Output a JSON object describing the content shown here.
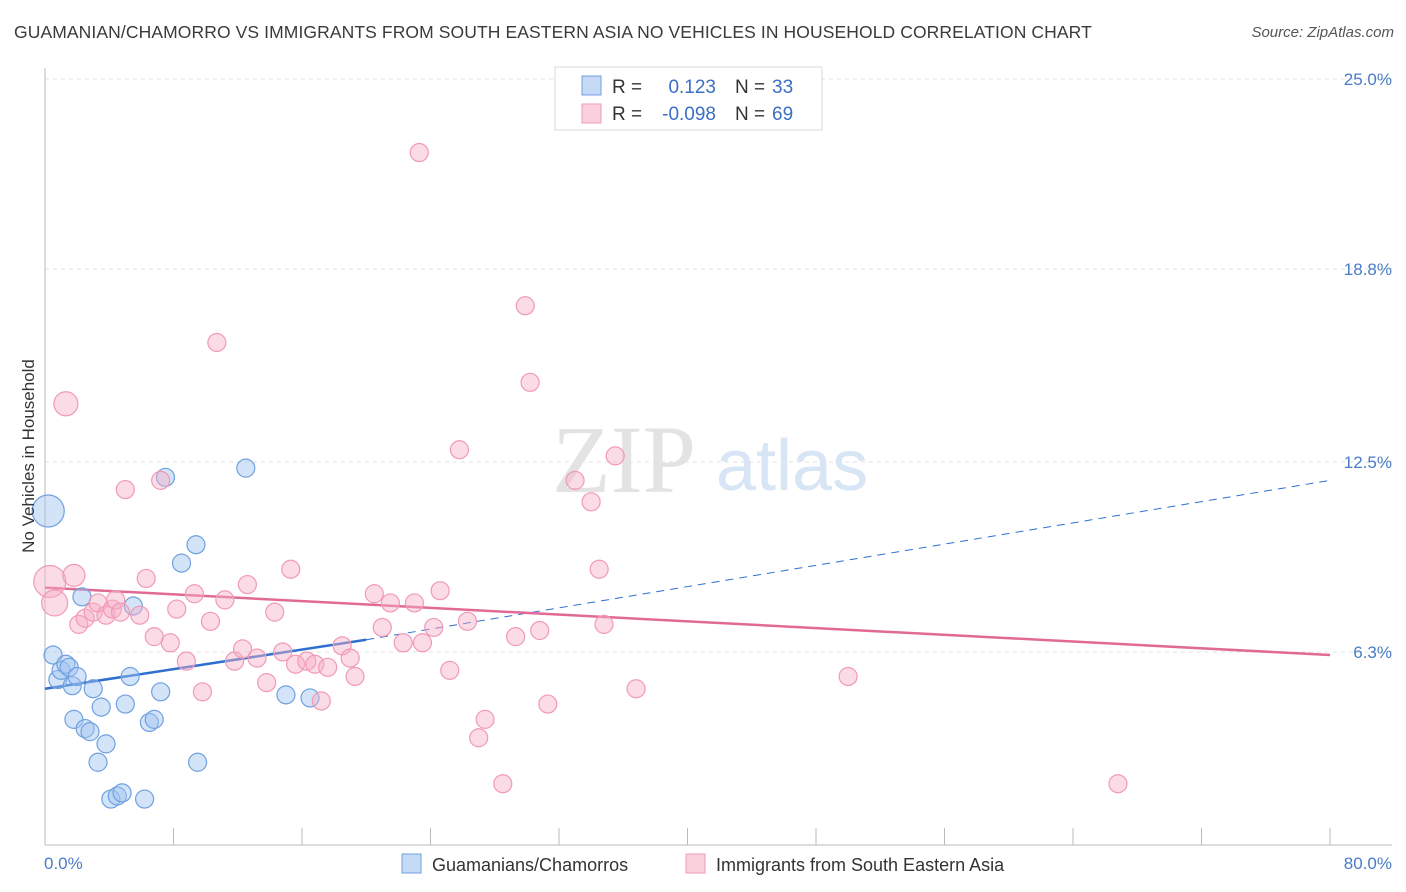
{
  "header": {
    "title": "GUAMANIAN/CHAMORRO VS IMMIGRANTS FROM SOUTH EASTERN ASIA NO VEHICLES IN HOUSEHOLD CORRELATION CHART",
    "source": "Source: ZipAtlas.com"
  },
  "watermark": {
    "zip": "ZIP",
    "atlas": "atlas"
  },
  "legend": {
    "r_label": "R =",
    "n_label": "N =",
    "rows": [
      {
        "r": "0.123",
        "n": "33"
      },
      {
        "r": "-0.098",
        "n": "69"
      }
    ]
  },
  "chart_data": {
    "type": "scatter",
    "title": "GUAMANIAN/CHAMORRO VS IMMIGRANTS FROM SOUTH EASTERN ASIA NO VEHICLES IN HOUSEHOLD CORRELATION CHART",
    "xlabel": "",
    "ylabel": "No Vehicles in Household",
    "xlim": [
      0,
      80
    ],
    "ylim": [
      0,
      25
    ],
    "x_tick_labels": [
      "0.0%",
      "80.0%"
    ],
    "y_ticks": [
      6.3,
      12.5,
      18.8,
      25.0
    ],
    "y_tick_labels": [
      "6.3%",
      "12.5%",
      "18.8%",
      "25.0%"
    ],
    "grid": true,
    "legend_position": "top-center",
    "colors": {
      "blue": "#6fa0e0",
      "pink": "#f19ab5",
      "blue_line": "#2f6fd0",
      "pink_line": "#e06a93"
    },
    "series": [
      {
        "name": "Guamanians/Chamorros",
        "color": "blue",
        "r": 0.123,
        "n": 33,
        "trend": {
          "x0": 0,
          "y0": 5.1,
          "x1": 20,
          "y1": 6.7,
          "dash_to_x": 80,
          "dash_to_y": 11.9
        },
        "points": [
          [
            0.2,
            10.9,
            16
          ],
          [
            0.5,
            6.2,
            9
          ],
          [
            0.8,
            5.4,
            9
          ],
          [
            1.0,
            5.7,
            9
          ],
          [
            1.3,
            5.9,
            9
          ],
          [
            1.5,
            5.8,
            9
          ],
          [
            1.7,
            5.2,
            9
          ],
          [
            2.0,
            5.5,
            9
          ],
          [
            1.8,
            4.1,
            9
          ],
          [
            2.5,
            3.8,
            9
          ],
          [
            2.8,
            3.7,
            9
          ],
          [
            3.0,
            5.1,
            9
          ],
          [
            3.3,
            2.7,
            9
          ],
          [
            3.5,
            4.5,
            9
          ],
          [
            3.8,
            3.3,
            9
          ],
          [
            4.1,
            1.5,
            9
          ],
          [
            4.5,
            1.6,
            9
          ],
          [
            4.8,
            1.7,
            9
          ],
          [
            5.0,
            4.6,
            9
          ],
          [
            5.3,
            5.5,
            9
          ],
          [
            6.2,
            1.5,
            9
          ],
          [
            6.5,
            4.0,
            9
          ],
          [
            6.8,
            4.1,
            9
          ],
          [
            7.2,
            5.0,
            9
          ],
          [
            7.5,
            12.0,
            9
          ],
          [
            8.5,
            9.2,
            9
          ],
          [
            9.4,
            9.8,
            9
          ],
          [
            9.5,
            2.7,
            9
          ],
          [
            12.5,
            12.3,
            9
          ],
          [
            15.0,
            4.9,
            9
          ],
          [
            16.5,
            4.8,
            9
          ],
          [
            2.3,
            8.1,
            9
          ],
          [
            5.5,
            7.8,
            9
          ]
        ]
      },
      {
        "name": "Immigrants from South Eastern Asia",
        "color": "pink",
        "r": -0.098,
        "n": 69,
        "trend": {
          "x0": 0,
          "y0": 8.4,
          "x1": 80,
          "y1": 6.2
        },
        "points": [
          [
            0.3,
            8.6,
            16
          ],
          [
            0.6,
            7.9,
            13
          ],
          [
            1.3,
            14.4,
            12
          ],
          [
            1.8,
            8.8,
            11
          ],
          [
            2.1,
            7.2,
            9
          ],
          [
            2.5,
            7.4,
            9
          ],
          [
            3.0,
            7.6,
            9
          ],
          [
            3.3,
            7.9,
            9
          ],
          [
            3.8,
            7.5,
            9
          ],
          [
            4.2,
            7.7,
            9
          ],
          [
            4.4,
            8.0,
            9
          ],
          [
            4.7,
            7.6,
            9
          ],
          [
            5.0,
            11.6,
            9
          ],
          [
            5.9,
            7.5,
            9
          ],
          [
            6.3,
            8.7,
            9
          ],
          [
            6.8,
            6.8,
            9
          ],
          [
            7.2,
            11.9,
            9
          ],
          [
            7.8,
            6.6,
            9
          ],
          [
            8.2,
            7.7,
            9
          ],
          [
            8.8,
            6.0,
            9
          ],
          [
            9.3,
            8.2,
            9
          ],
          [
            9.8,
            5.0,
            9
          ],
          [
            10.3,
            7.3,
            9
          ],
          [
            10.7,
            16.4,
            9
          ],
          [
            11.2,
            8.0,
            9
          ],
          [
            11.8,
            6.0,
            9
          ],
          [
            12.3,
            6.4,
            9
          ],
          [
            12.6,
            8.5,
            9
          ],
          [
            13.2,
            6.1,
            9
          ],
          [
            13.8,
            5.3,
            9
          ],
          [
            14.3,
            7.6,
            9
          ],
          [
            14.8,
            6.3,
            9
          ],
          [
            15.3,
            9.0,
            9
          ],
          [
            15.6,
            5.9,
            9
          ],
          [
            16.3,
            6.0,
            9
          ],
          [
            16.8,
            5.9,
            9
          ],
          [
            17.2,
            4.7,
            9
          ],
          [
            17.6,
            5.8,
            9
          ],
          [
            18.5,
            6.5,
            9
          ],
          [
            19.0,
            6.1,
            9
          ],
          [
            19.3,
            5.5,
            9
          ],
          [
            20.5,
            8.2,
            9
          ],
          [
            21.0,
            7.1,
            9
          ],
          [
            21.5,
            7.9,
            9
          ],
          [
            22.3,
            6.6,
            9
          ],
          [
            23.0,
            7.9,
            9
          ],
          [
            23.5,
            6.6,
            9
          ],
          [
            23.3,
            22.6,
            9
          ],
          [
            24.2,
            7.1,
            9
          ],
          [
            24.6,
            8.3,
            9
          ],
          [
            25.2,
            5.7,
            9
          ],
          [
            25.8,
            12.9,
            9
          ],
          [
            26.3,
            7.3,
            9
          ],
          [
            27.0,
            3.5,
            9
          ],
          [
            27.4,
            4.1,
            9
          ],
          [
            28.5,
            2.0,
            9
          ],
          [
            29.3,
            6.8,
            9
          ],
          [
            29.9,
            17.6,
            9
          ],
          [
            30.2,
            15.1,
            9
          ],
          [
            30.8,
            7.0,
            9
          ],
          [
            31.3,
            4.6,
            9
          ],
          [
            33.0,
            11.9,
            9
          ],
          [
            34.0,
            11.2,
            9
          ],
          [
            34.5,
            9.0,
            9
          ],
          [
            34.8,
            7.2,
            9
          ],
          [
            35.5,
            12.7,
            9
          ],
          [
            36.8,
            5.1,
            9
          ],
          [
            50.0,
            5.5,
            9
          ],
          [
            66.8,
            2.0,
            9
          ]
        ]
      }
    ]
  }
}
